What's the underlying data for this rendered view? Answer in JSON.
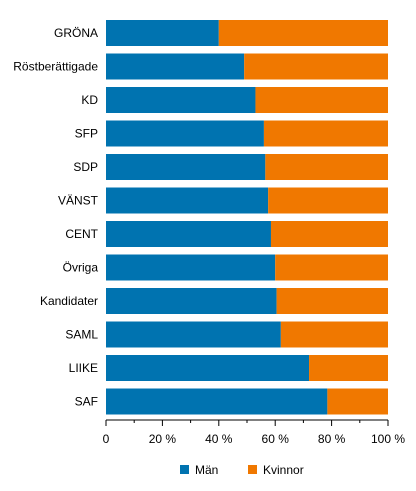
{
  "chart_data": {
    "type": "bar",
    "orientation": "horizontal",
    "stacked": true,
    "categories": [
      "GRÖNA",
      "Röstberättigade",
      "KD",
      "SFP",
      "SDP",
      "VÄNST",
      "CENT",
      "Övriga",
      "Kandidater",
      "SAML",
      "LIIKE",
      "SAF"
    ],
    "series": [
      {
        "name": "Män",
        "color": "#0073b0",
        "values": [
          40,
          49,
          53,
          56,
          56.5,
          57.5,
          58.5,
          60,
          60.5,
          62,
          72,
          78.5
        ]
      },
      {
        "name": "Kvinnor",
        "color": "#f07800",
        "values": [
          60,
          51,
          47,
          44,
          43.5,
          42.5,
          41.5,
          40,
          39.5,
          38,
          28,
          21.5
        ]
      }
    ],
    "xlim": [
      0,
      100
    ],
    "xticks": [
      "0",
      "20 %",
      "40 %",
      "60 %",
      "80 %",
      "100 %"
    ],
    "grid": false,
    "legend": "bottom"
  }
}
